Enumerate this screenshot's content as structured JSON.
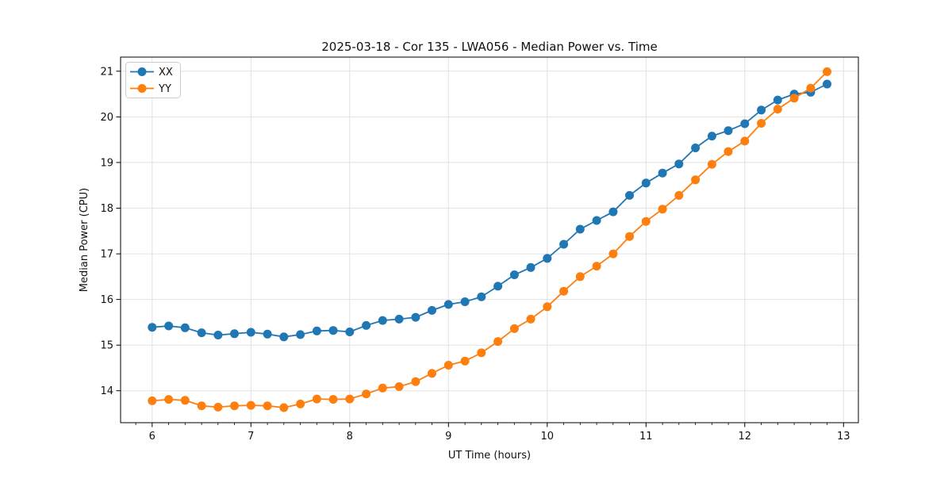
{
  "chart_data": {
    "type": "line",
    "title": "2025-03-18 - Cor 135 - LWA056 - Median Power vs. Time",
    "xlabel": "UT Time (hours)",
    "ylabel": "Median Power (CPU)",
    "xlim": [
      5.68,
      13.15
    ],
    "ylim": [
      13.3,
      21.31
    ],
    "xticks": [
      6,
      7,
      8,
      9,
      10,
      11,
      12,
      13
    ],
    "yticks": [
      14,
      15,
      16,
      17,
      18,
      19,
      20,
      21
    ],
    "x_minor_interval": 0.1667,
    "grid": true,
    "legend_position": "upper-left",
    "x": [
      6.0,
      6.167,
      6.333,
      6.5,
      6.667,
      6.833,
      7.0,
      7.167,
      7.333,
      7.5,
      7.667,
      7.833,
      8.0,
      8.167,
      8.333,
      8.5,
      8.667,
      8.833,
      9.0,
      9.167,
      9.333,
      9.5,
      9.667,
      9.833,
      10.0,
      10.167,
      10.333,
      10.5,
      10.667,
      10.833,
      11.0,
      11.167,
      11.333,
      11.5,
      11.667,
      11.833,
      12.0,
      12.167,
      12.333,
      12.5,
      12.667,
      12.833
    ],
    "series": [
      {
        "name": "XX",
        "color": "#1f77b4",
        "values": [
          15.39,
          15.42,
          15.38,
          15.27,
          15.22,
          15.25,
          15.28,
          15.24,
          15.18,
          15.23,
          15.31,
          15.32,
          15.29,
          15.43,
          15.54,
          15.57,
          15.61,
          15.76,
          15.89,
          15.95,
          16.06,
          16.29,
          16.54,
          16.7,
          16.9,
          17.21,
          17.54,
          17.73,
          17.92,
          18.28,
          18.55,
          18.77,
          18.97,
          19.32,
          19.58,
          19.7,
          19.85,
          20.15,
          20.37,
          20.5,
          20.54,
          20.72
        ]
      },
      {
        "name": "YY",
        "color": "#ff7f0e",
        "values": [
          13.78,
          13.81,
          13.79,
          13.67,
          13.64,
          13.67,
          13.68,
          13.67,
          13.63,
          13.71,
          13.82,
          13.81,
          13.82,
          13.93,
          14.06,
          14.09,
          14.2,
          14.38,
          14.56,
          14.65,
          14.83,
          15.08,
          15.36,
          15.57,
          15.84,
          16.18,
          16.5,
          16.73,
          17.0,
          17.38,
          17.71,
          17.98,
          18.28,
          18.62,
          18.96,
          19.24,
          19.47,
          19.86,
          20.17,
          20.41,
          20.63,
          20.99
        ]
      }
    ],
    "style": {
      "grid_color": "#e2e2e2",
      "spine_color": "#000000",
      "marker_radius": 5.5,
      "line_width": 1.8
    }
  }
}
